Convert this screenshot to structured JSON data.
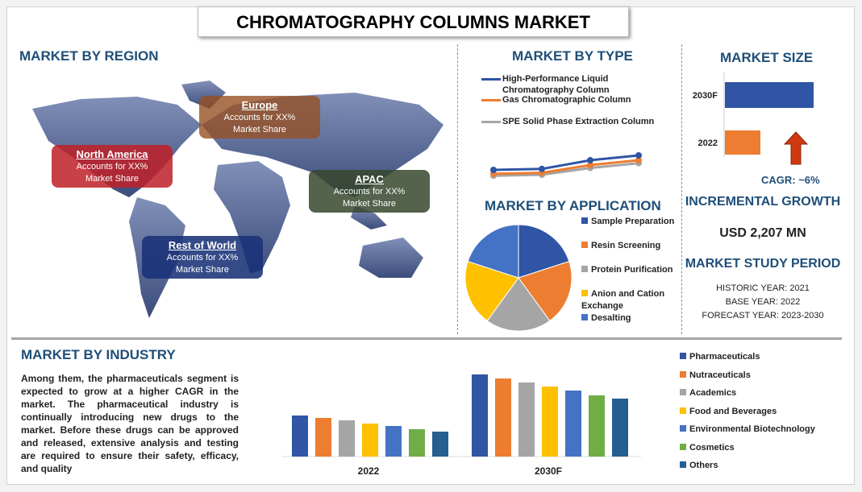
{
  "title": "CHROMATOGRAPHY COLUMNS MARKET",
  "region": {
    "heading": "MARKET BY REGION",
    "boxes": [
      {
        "name": "North America",
        "text": "Accounts for XX%",
        "text2": "Market Share",
        "color": "#c0282d"
      },
      {
        "name": "Europe",
        "text": "Accounts for XX%",
        "text2": "Market Share",
        "color": "#9c5a2e"
      },
      {
        "name": "APAC",
        "text": "Accounts for XX%",
        "text2": "Market Share",
        "color": "#3f4f33"
      },
      {
        "name": "Rest of World",
        "text": "Accounts for XX%",
        "text2": "Market Share",
        "color": "#1f3a7a"
      }
    ]
  },
  "type": {
    "heading": "MARKET BY TYPE"
  },
  "application": {
    "heading": "MARKET BY APPLICATION"
  },
  "size": {
    "heading": "MARKET SIZE",
    "cagr": "CAGR:  ~6%"
  },
  "growth": {
    "heading": "INCREMENTAL GROWTH",
    "value": "USD 2,207 MN"
  },
  "period": {
    "heading": "MARKET STUDY PERIOD",
    "historic": "HISTORIC YEAR: 2021",
    "base": "BASE YEAR: 2022",
    "forecast": "FORECAST YEAR: 2023-2030"
  },
  "industry": {
    "heading": "MARKET BY INDUSTRY",
    "text": "Among them, the pharmaceuticals segment is expected to grow at a higher CAGR in the market. The pharmaceutical industry is continually introducing new drugs to the market. Before these drugs can be approved and released, extensive analysis and testing are required to ensure their safety, efficacy, and quality"
  },
  "chart_data": [
    {
      "type": "line",
      "x": [
        "1",
        "2",
        "3",
        "4"
      ],
      "series": [
        {
          "name": "High-Performance Liquid Chromatography Column",
          "values": [
            2.0,
            2.1,
            3.0,
            3.5
          ],
          "color": "#2f55a4"
        },
        {
          "name": "Gas Chromatographic Column",
          "values": [
            1.6,
            1.7,
            2.5,
            3.0
          ],
          "color": "#ed7d31"
        },
        {
          "name": "SPE Solid Phase Extraction Column",
          "values": [
            1.4,
            1.5,
            2.2,
            2.7
          ],
          "color": "#a5a5a5"
        }
      ]
    },
    {
      "type": "pie",
      "labels": [
        "Sample Preparation",
        "Resin Screening",
        "Protein Purification",
        "Anion and Cation Exchange",
        "Desalting"
      ],
      "values": [
        20,
        20,
        20,
        20,
        20
      ],
      "colors": [
        "#2f55a4",
        "#ed7d31",
        "#a5a5a5",
        "#ffc000",
        "#4472c4"
      ]
    },
    {
      "type": "bar",
      "orientation": "horizontal",
      "categories": [
        "2030F",
        "2022"
      ],
      "values": [
        100,
        40
      ],
      "colors": [
        "#2f55a4",
        "#ed7d31"
      ]
    },
    {
      "type": "bar",
      "categories": [
        "2022",
        "2030F"
      ],
      "series": [
        {
          "name": "Pharmaceuticals",
          "values": [
            51,
            102
          ],
          "color": "#2f55a4"
        },
        {
          "name": "Nutraceuticals",
          "values": [
            48,
            97
          ],
          "color": "#ed7d31"
        },
        {
          "name": "Academics",
          "values": [
            45,
            92
          ],
          "color": "#a5a5a5"
        },
        {
          "name": "Food and Beverages",
          "values": [
            41,
            87
          ],
          "color": "#ffc000"
        },
        {
          "name": "Environmental Biotechnology",
          "values": [
            38,
            82
          ],
          "color": "#4472c4"
        },
        {
          "name": "Cosmetics",
          "values": [
            34,
            76
          ],
          "color": "#70ad47"
        },
        {
          "name": "Others",
          "values": [
            31,
            72
          ],
          "color": "#255e91"
        }
      ]
    }
  ]
}
